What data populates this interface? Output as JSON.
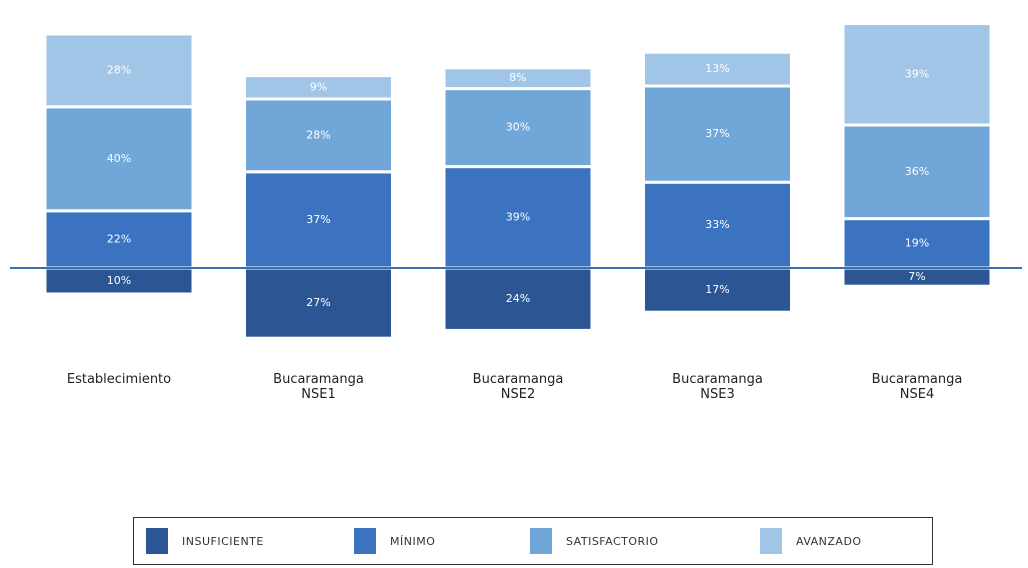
{
  "chart_data": {
    "type": "diverging-stacked-bar",
    "categories": [
      "Establecimiento",
      "Bucaramanga NSE1",
      "Bucaramanga NSE2",
      "Bucaramanga NSE3",
      "Bucaramanga NSE4"
    ],
    "series": [
      {
        "name": "INSUFICIENTE",
        "color": "#2b5593",
        "values": [
          10,
          27,
          24,
          17,
          7
        ],
        "value_labels": [
          "10%",
          "27%",
          "24%",
          "17%",
          "7%"
        ]
      },
      {
        "name": "MÍNIMO",
        "color": "#3b73c1",
        "values": [
          22,
          37,
          39,
          33,
          19
        ],
        "value_labels": [
          "22%",
          "37%",
          "39%",
          "33%",
          "19%"
        ]
      },
      {
        "name": "SATISFACTORIO",
        "color": "#70a6d8",
        "values": [
          40,
          28,
          30,
          37,
          36
        ],
        "value_labels": [
          "40%",
          "28%",
          "30%",
          "37%",
          "36%"
        ]
      },
      {
        "name": "AVANZADO",
        "color": "#a0c5e6",
        "values": [
          28,
          9,
          8,
          13,
          39
        ],
        "value_labels": [
          "28%",
          "9%",
          "8%",
          "13%",
          "39%"
        ]
      }
    ]
  }
}
